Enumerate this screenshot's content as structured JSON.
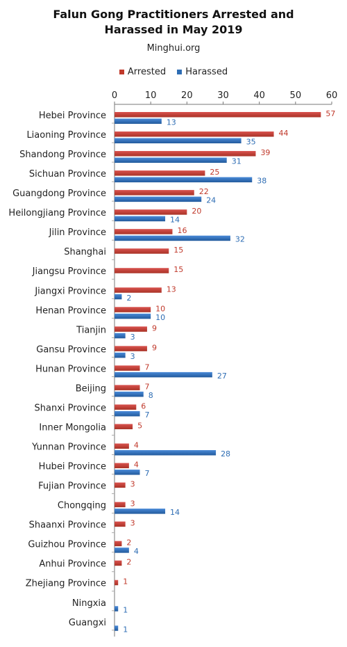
{
  "chart_data": {
    "type": "bar",
    "orientation": "horizontal",
    "title_line1": "Falun Gong Practitioners Arrested and",
    "title_line2": "Harassed in May 2019",
    "subtitle": "Minghui.org",
    "xlim": [
      0,
      60
    ],
    "xticks": [
      0,
      10,
      20,
      30,
      40,
      50,
      60
    ],
    "legend_position": "top",
    "categories": [
      "Hebei Province",
      "Liaoning Province",
      "Shandong Province",
      "Sichuan Province",
      "Guangdong Province",
      "Heilongjiang Province",
      "Jilin Province",
      "Shanghai",
      "Jiangsu Province",
      "Jiangxi Province",
      "Henan Province",
      "Tianjin",
      "Gansu Province",
      "Hunan Province",
      "Beijing",
      "Shanxi Province",
      "Inner Mongolia",
      "Yunnan Province",
      "Hubei Province",
      "Fujian Province",
      "Chongqing",
      "Shaanxi Province",
      "Guizhou Province",
      "Anhui Province",
      "Zhejiang Province",
      "Ningxia",
      "Guangxi"
    ],
    "series": [
      {
        "name": "Arrested",
        "color": "#c0392b",
        "values": [
          57,
          44,
          39,
          25,
          22,
          20,
          16,
          15,
          15,
          13,
          10,
          9,
          9,
          7,
          7,
          6,
          5,
          4,
          4,
          3,
          3,
          3,
          2,
          2,
          1,
          null,
          null
        ]
      },
      {
        "name": "Harassed",
        "color": "#2e6db4",
        "values": [
          13,
          35,
          31,
          38,
          24,
          14,
          32,
          null,
          null,
          2,
          10,
          3,
          3,
          27,
          8,
          7,
          null,
          28,
          7,
          null,
          14,
          null,
          4,
          null,
          null,
          1,
          1
        ]
      }
    ]
  }
}
